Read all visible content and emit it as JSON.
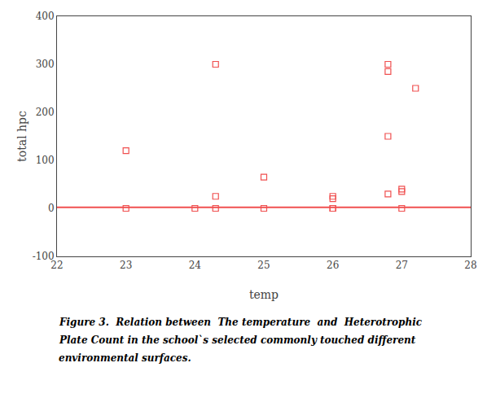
{
  "chart_data": {
    "type": "scatter",
    "xlabel": "temp",
    "ylabel": "total hpc",
    "series": [
      {
        "type": "line",
        "color": "#F05050",
        "x": [
          22,
          28
        ],
        "values": [
          2,
          2
        ]
      },
      {
        "type": "scatter",
        "marker": "square-open",
        "color": "#F05050",
        "x": [
          23,
          23,
          24,
          24.3,
          24.3,
          24.3,
          25,
          25,
          26,
          26,
          26,
          26,
          26.8,
          26.8,
          26.8,
          26.8,
          27,
          27,
          27,
          27.2
        ],
        "values": [
          120,
          0,
          0,
          300,
          25,
          0,
          65,
          0,
          25,
          20,
          0,
          0,
          150,
          300,
          285,
          30,
          35,
          40,
          0,
          250
        ]
      }
    ],
    "xlim": [
      22,
      28
    ],
    "ylim": [
      -100,
      400
    ],
    "xticks": [
      22,
      23,
      24,
      25,
      26,
      27,
      28
    ],
    "yticks": [
      -100,
      0,
      100,
      200,
      300,
      400
    ],
    "grid": false,
    "annotations": [
      "Figure 3.  Relation between  The temperature  and  Heterotrophic",
      "Plate Count in the school`s selected commonly touched different",
      "environmental surfaces."
    ]
  }
}
